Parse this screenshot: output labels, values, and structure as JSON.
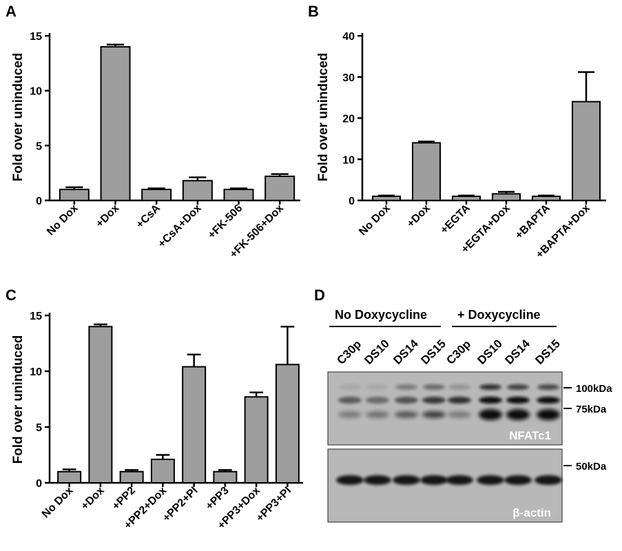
{
  "chart_data": [
    {
      "type": "bar",
      "panel_label": "A",
      "ylabel": "Fold over uninduced",
      "ylim": [
        0,
        15
      ],
      "yticks": [
        0,
        5,
        10,
        15
      ],
      "categories": [
        "No Dox",
        "+Dox",
        "+CsA",
        "+CsA+Dox",
        "+FK-506",
        "+FK-506+Dox"
      ],
      "values": [
        1.0,
        14.0,
        1.0,
        1.8,
        1.0,
        2.2
      ],
      "errors": [
        0.2,
        0.2,
        0.1,
        0.3,
        0.1,
        0.2
      ],
      "bar_color": "#9e9e9e"
    },
    {
      "type": "bar",
      "panel_label": "B",
      "ylabel": "Fold over uninduced",
      "ylim": [
        0,
        40
      ],
      "yticks": [
        0,
        10,
        20,
        30,
        40
      ],
      "categories": [
        "No Dox",
        "+Dox",
        "+EGTA",
        "+EGTA+Dox",
        "+BAPTA",
        "+BAPTA+Dox"
      ],
      "values": [
        1.0,
        14.0,
        1.0,
        1.6,
        1.0,
        24.0
      ],
      "errors": [
        0.2,
        0.3,
        0.2,
        0.5,
        0.2,
        7.2
      ],
      "bar_color": "#9e9e9e"
    },
    {
      "type": "bar",
      "panel_label": "C",
      "ylabel": "Fold over uninduced",
      "ylim": [
        0,
        15
      ],
      "yticks": [
        0,
        5,
        10,
        15
      ],
      "categories": [
        "No Dox",
        "+Dox",
        "+PP2",
        "+PP2+Dox",
        "+PP2+PI",
        "+PP3",
        "+PP3+Dox",
        "+PP3+PI"
      ],
      "values": [
        1.0,
        14.0,
        1.0,
        2.1,
        10.4,
        1.0,
        7.7,
        10.6
      ],
      "errors": [
        0.2,
        0.2,
        0.15,
        0.4,
        1.1,
        0.15,
        0.4,
        3.4
      ],
      "bar_color": "#9e9e9e"
    }
  ],
  "blot": {
    "panel_label": "D",
    "groups": [
      "No Doxycycline",
      "+ Doxycycline"
    ],
    "lanes": [
      "C30p",
      "DS10",
      "DS14",
      "DS15",
      "C30p",
      "DS10",
      "DS14",
      "DS15"
    ],
    "markers": [
      "100kDa",
      "75kDa",
      "50kDa"
    ],
    "top_label": "NFATc1",
    "bottom_label": "β-actin"
  }
}
